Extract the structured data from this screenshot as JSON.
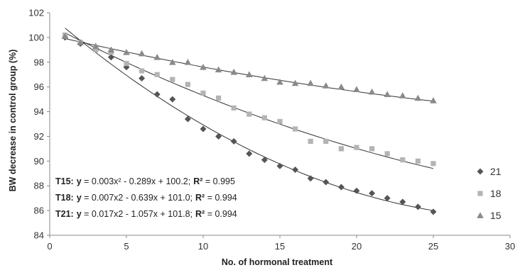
{
  "chart_data": {
    "type": "scatter",
    "title": "",
    "xlabel": "No. of hormonal treatment",
    "ylabel": "BW decrease in control group (%)",
    "xlim": [
      0,
      30
    ],
    "ylim": [
      84,
      102
    ],
    "xticks": [
      0,
      5,
      10,
      15,
      20,
      25,
      30
    ],
    "yticks": [
      84,
      86,
      88,
      90,
      92,
      94,
      96,
      98,
      100,
      102
    ],
    "grid": false,
    "legend_position": "right",
    "series": [
      {
        "name": "21",
        "marker": "diamond",
        "color": "#555555",
        "x": [
          1,
          2,
          3,
          4,
          5,
          6,
          7,
          8,
          9,
          10,
          11,
          12,
          13,
          14,
          15,
          16,
          17,
          18,
          19,
          20,
          21,
          22,
          23,
          24,
          25
        ],
        "values": [
          100.0,
          99.5,
          99.0,
          98.4,
          97.6,
          96.7,
          95.4,
          95.0,
          93.4,
          92.6,
          92.0,
          91.6,
          90.6,
          90.1,
          89.6,
          89.3,
          88.6,
          88.3,
          87.9,
          87.6,
          87.4,
          87.0,
          86.7,
          86.3,
          85.9
        ],
        "fit": [
          0.017,
          -1.057,
          101.8
        ]
      },
      {
        "name": "18",
        "marker": "square",
        "color": "#b4b4b4",
        "x": [
          1,
          2,
          3,
          4,
          5,
          6,
          7,
          8,
          9,
          10,
          11,
          12,
          13,
          14,
          15,
          16,
          17,
          18,
          19,
          20,
          21,
          22,
          23,
          24,
          25
        ],
        "values": [
          100.2,
          99.6,
          99.0,
          98.8,
          97.9,
          97.3,
          97.0,
          96.6,
          96.2,
          95.5,
          95.1,
          94.3,
          93.8,
          93.5,
          93.2,
          92.6,
          91.6,
          91.6,
          91.0,
          91.1,
          91.0,
          90.6,
          90.1,
          90.0,
          89.8
        ],
        "fit": [
          0.007,
          -0.639,
          101.0
        ]
      },
      {
        "name": "15",
        "marker": "triangle",
        "color": "#8a8a8a",
        "x": [
          1,
          2,
          3,
          4,
          5,
          6,
          7,
          8,
          9,
          10,
          11,
          12,
          13,
          14,
          15,
          16,
          17,
          18,
          19,
          20,
          21,
          22,
          23,
          24,
          25
        ],
        "values": [
          100.1,
          99.6,
          99.3,
          99.0,
          98.8,
          98.7,
          98.4,
          98.0,
          98.0,
          97.6,
          97.4,
          97.2,
          97.0,
          96.7,
          96.4,
          96.3,
          96.3,
          96.1,
          96.0,
          95.8,
          95.6,
          95.4,
          95.3,
          95.1,
          94.9
        ],
        "fit": [
          0.003,
          -0.289,
          100.2
        ]
      }
    ],
    "annotations": [
      {
        "label": "T15:",
        "eq_prefix": "y",
        "eq_body": " = 0.003x² - 0.289x + 100.2;",
        "r2_label": "R²",
        "r2_value": " = 0.995"
      },
      {
        "label": "T18:",
        "eq_prefix": "y",
        "eq_body": " = 0.007x2 - 0.639x + 101.0;",
        "r2_label": "R²",
        "r2_value": " = 0.994"
      },
      {
        "label": "T21:",
        "eq_prefix": "y",
        "eq_body": " = 0.017x2 - 1.057x + 101.8;",
        "r2_label": "R²",
        "r2_value": " = 0.994"
      }
    ]
  }
}
